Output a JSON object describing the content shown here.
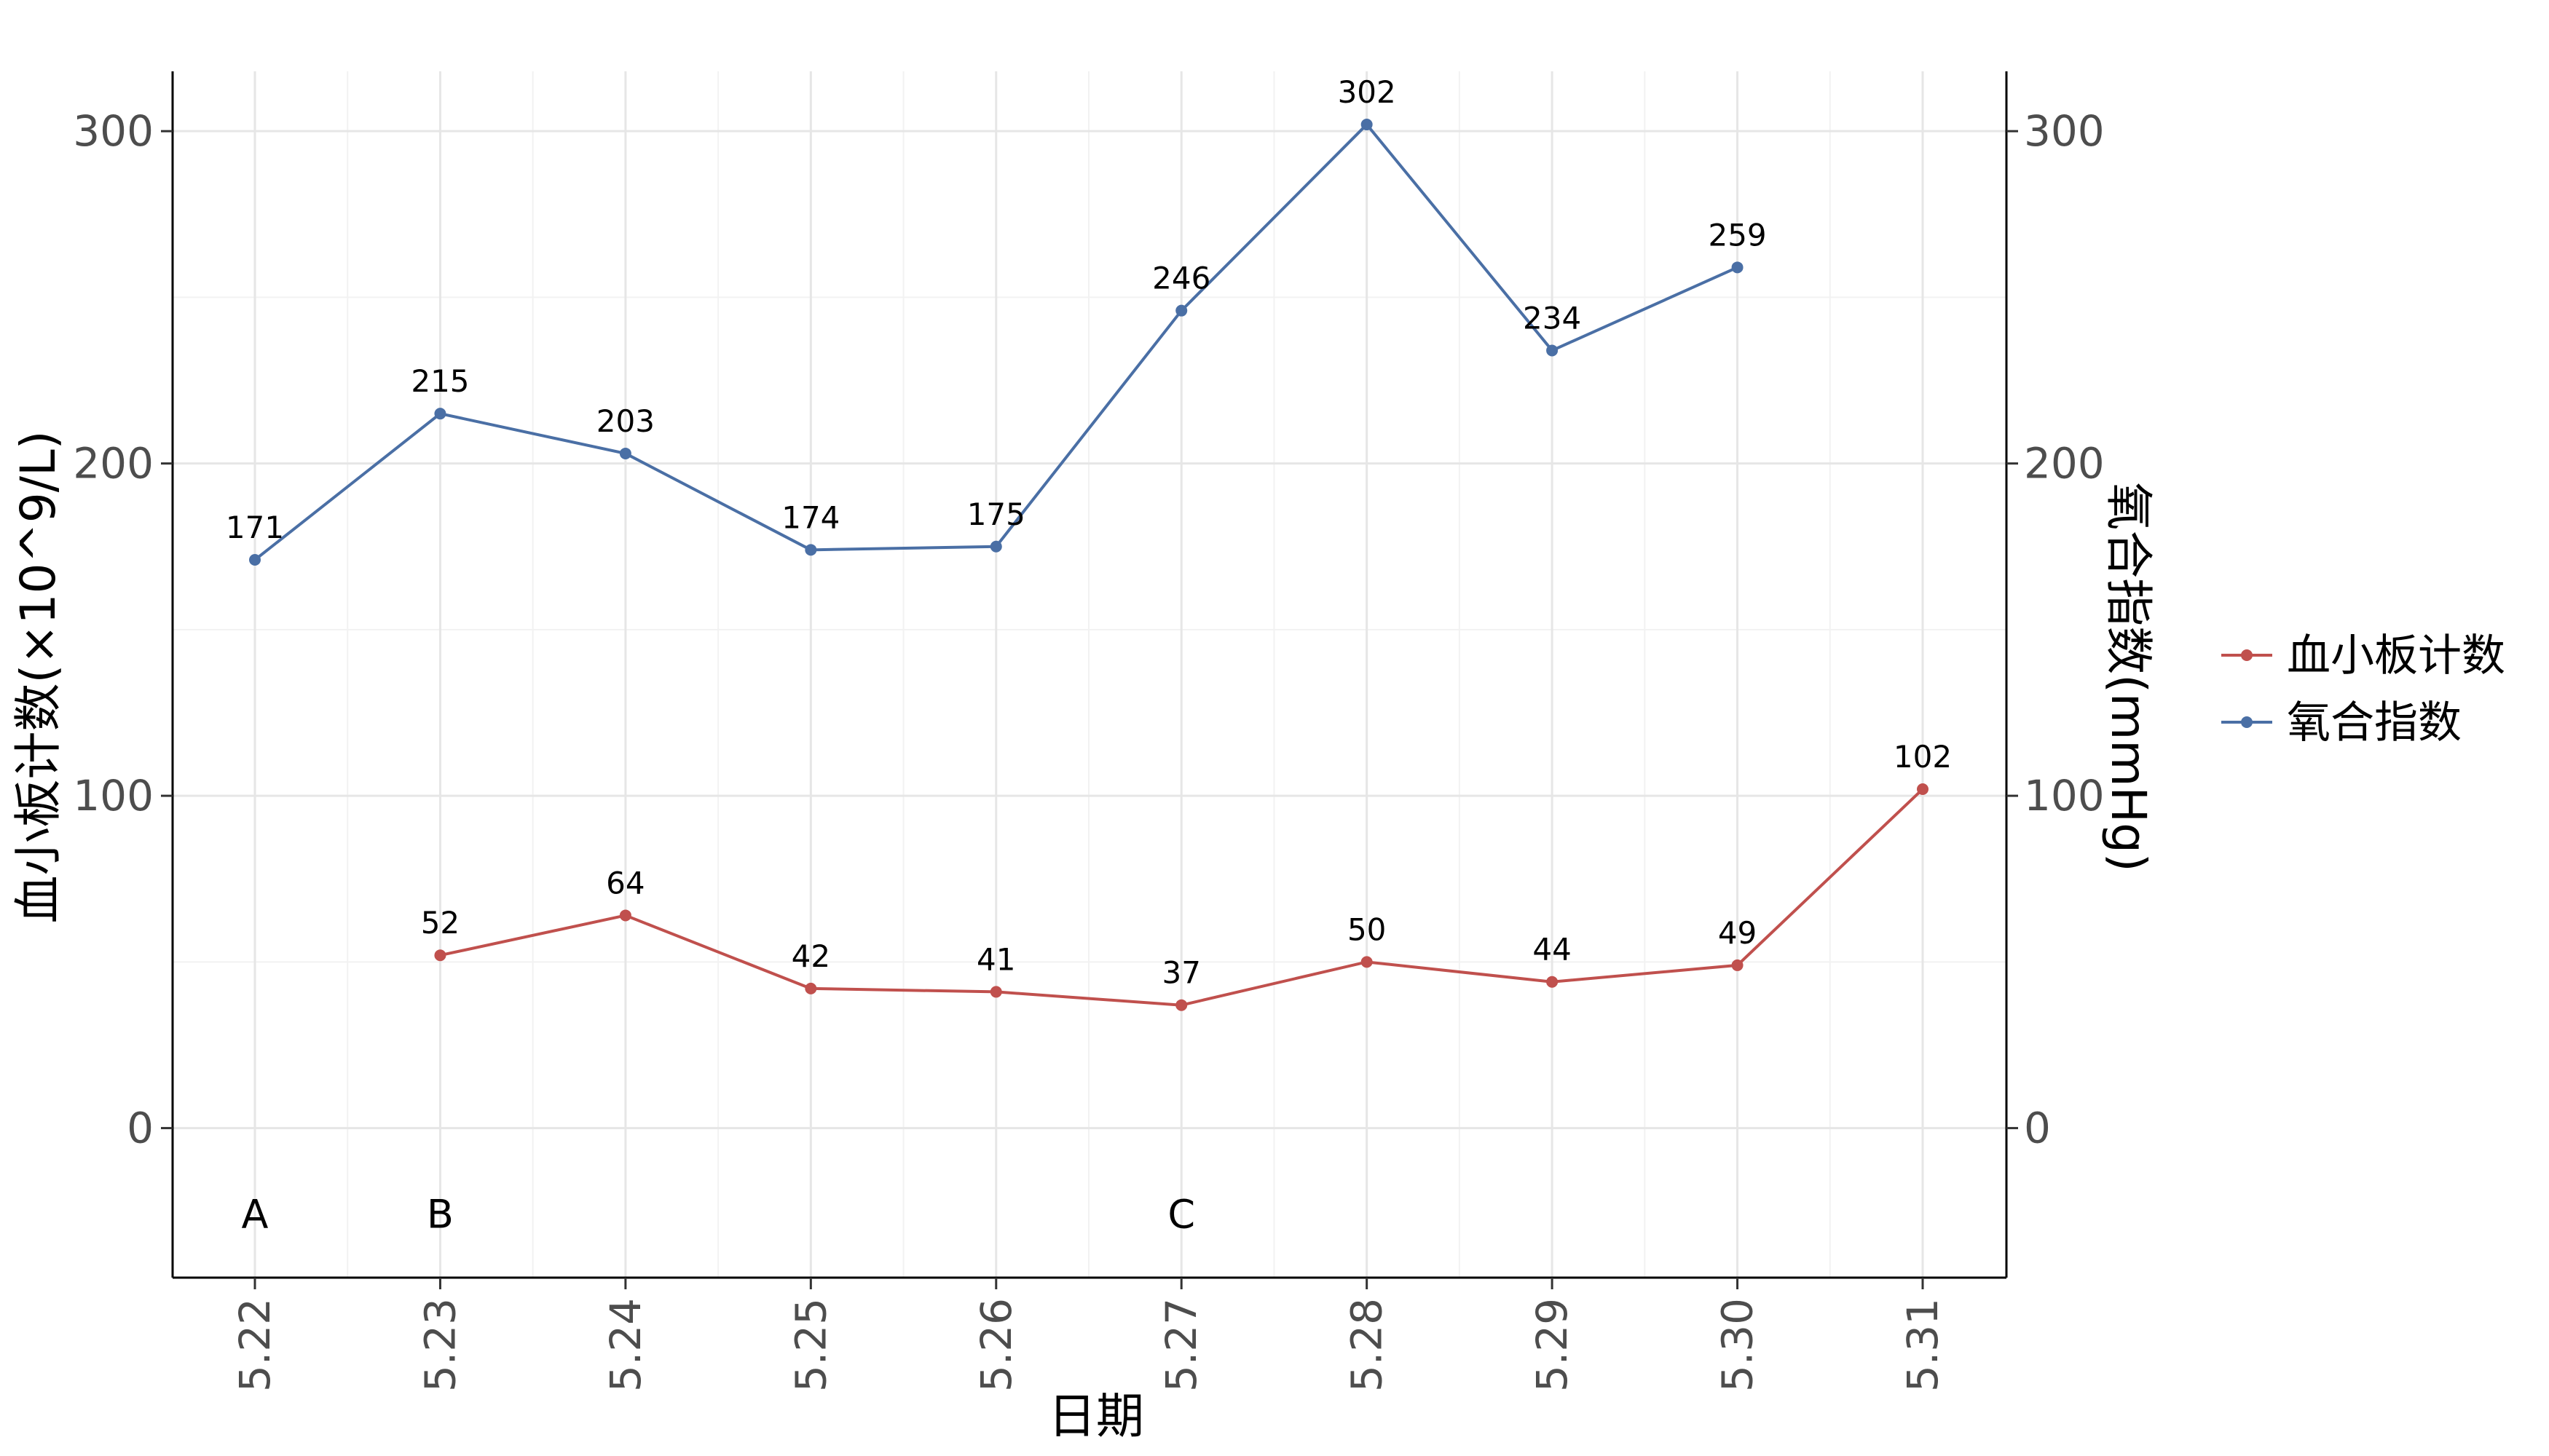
{
  "chart_data": {
    "type": "line",
    "xlabel": "日期",
    "ylabel_left": "血小板计数(×10^9/L)",
    "ylabel_right": "氧合指数(mmHg)",
    "ylim": [
      -45,
      318
    ],
    "yticks": [
      0,
      100,
      200,
      300
    ],
    "categories": [
      "5.22",
      "5.23",
      "5.24",
      "5.25",
      "5.26",
      "5.27",
      "5.28",
      "5.29",
      "5.30",
      "5.31"
    ],
    "series": [
      {
        "name": "血小板计数",
        "color": "#c0504d",
        "values": [
          null,
          52,
          64,
          42,
          41,
          37,
          50,
          44,
          49,
          102
        ]
      },
      {
        "name": "氧合指数",
        "color": "#4a6fa5",
        "values": [
          171,
          215,
          203,
          174,
          175,
          246,
          302,
          234,
          259,
          null
        ]
      }
    ],
    "annotations": [
      {
        "category": "5.22",
        "label": "A"
      },
      {
        "category": "5.23",
        "label": "B"
      },
      {
        "category": "5.27",
        "label": "C"
      }
    ],
    "grid": true,
    "legend_position": "right"
  }
}
